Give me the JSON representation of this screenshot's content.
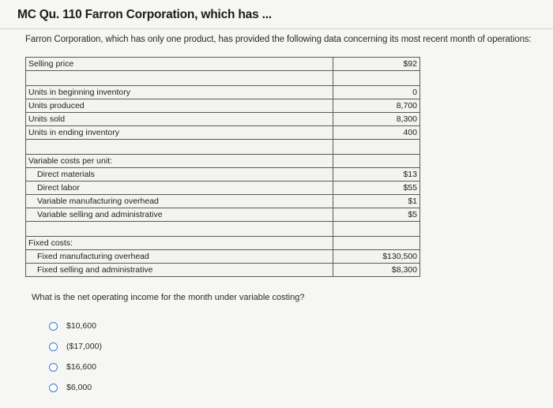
{
  "header": {
    "title": "MC Qu. 110 Farron Corporation, which has ..."
  },
  "question": {
    "intro": "Farron Corporation, which has only one product, has provided the following data concerning its most recent month of operations:",
    "prompt": "What is the net operating income for the month under variable costing?"
  },
  "table": {
    "selling_price": {
      "label": "Selling price",
      "value": "$92"
    },
    "units": [
      {
        "label": "Units in beginning inventory",
        "value": "0"
      },
      {
        "label": "Units produced",
        "value": "8,700"
      },
      {
        "label": "Units sold",
        "value": "8,300"
      },
      {
        "label": "Units in ending inventory",
        "value": "400"
      }
    ],
    "variable_header": "Variable costs per unit:",
    "variable": [
      {
        "label": "Direct materials",
        "value": "$13"
      },
      {
        "label": "Direct labor",
        "value": "$55"
      },
      {
        "label": "Variable manufacturing overhead",
        "value": "$1"
      },
      {
        "label": "Variable selling and administrative",
        "value": "$5"
      }
    ],
    "fixed_header": "Fixed costs:",
    "fixed": [
      {
        "label": "Fixed manufacturing overhead",
        "value": "$130,500"
      },
      {
        "label": "Fixed selling and administrative",
        "value": "$8,300"
      }
    ]
  },
  "options": [
    {
      "label": "$10,600"
    },
    {
      "label": "($17,000)"
    },
    {
      "label": "$16,600"
    },
    {
      "label": "$6,000"
    }
  ],
  "colors": {
    "radio_border": "#3b7bd0",
    "table_border": "#5a5a5a"
  }
}
